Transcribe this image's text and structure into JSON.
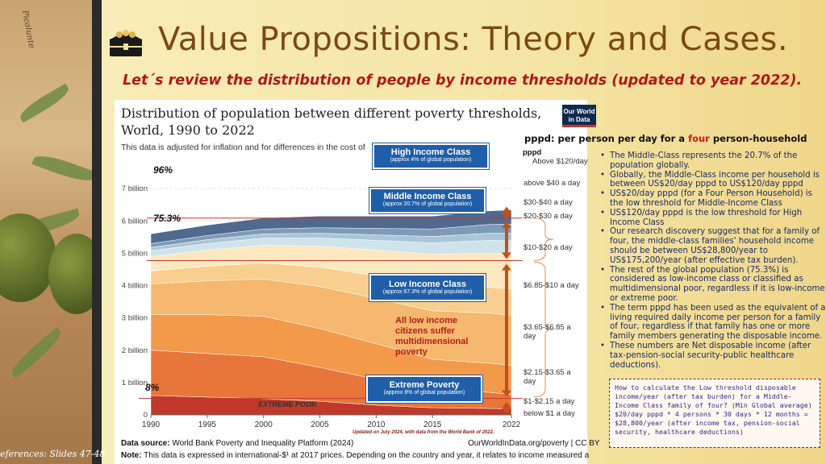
{
  "header": {
    "title": "Value Propositions: Theory and Cases.",
    "subtitle": "Let´s review the distribution of people by income thresholds (updated to year 2022).",
    "icon": "treasure-chest-icon"
  },
  "sidebar": {
    "references": "eferences: Slides 47-48",
    "signature": "Picalunte"
  },
  "owid_logo": {
    "line1": "Our World",
    "line2": "in Data"
  },
  "pppd": {
    "title_prefix": "pppd: per person per day for a ",
    "title_highlight": "four",
    "title_suffix": " person-household",
    "short": "pppd"
  },
  "chart_data": {
    "type": "area",
    "title": "Distribution of population between different poverty thresholds, World, 1990 to 2022",
    "subtitle": "This data is adjusted for inflation and for differences in the cost of",
    "x": [
      1990,
      1995,
      2000,
      2005,
      2010,
      2015,
      2020,
      2022
    ],
    "x_ticks": [
      "1990",
      "1995",
      "2000",
      "2005",
      "2010",
      "2015",
      "2022"
    ],
    "y_ticks": [
      "0",
      "1 billion",
      "2 billion",
      "3 billion",
      "4 billion",
      "5 billion",
      "6 billion",
      "7 billion"
    ],
    "ylim": [
      0,
      8.2
    ],
    "series": [
      {
        "name": "below $1 a day",
        "color": "#c0392b",
        "values": [
          0.6,
          0.55,
          0.5,
          0.42,
          0.3,
          0.22,
          0.2,
          0.18
        ]
      },
      {
        "name": "$1-$2.15 a day",
        "color": "#e8763a",
        "values": [
          1.4,
          1.35,
          1.3,
          1.05,
          0.8,
          0.55,
          0.5,
          0.45
        ]
      },
      {
        "name": "$2.15-$3.65 a day",
        "color": "#f2994a",
        "values": [
          1.1,
          1.2,
          1.25,
          1.2,
          1.1,
          0.95,
          0.9,
          0.9
        ]
      },
      {
        "name": "$3.65-$6.85 a day",
        "color": "#f6b76e",
        "values": [
          0.95,
          1.05,
          1.15,
          1.3,
          1.4,
          1.5,
          1.55,
          1.55
        ]
      },
      {
        "name": "$6.85-$10 a day",
        "color": "#f8cf8e",
        "values": [
          0.4,
          0.45,
          0.5,
          0.6,
          0.7,
          0.8,
          0.8,
          0.82
        ]
      },
      {
        "name": "$10-$20 a day",
        "color": "#fbe8c0",
        "values": [
          0.45,
          0.5,
          0.55,
          0.65,
          0.8,
          0.95,
          1.05,
          1.07
        ]
      },
      {
        "name": "$20-$30 a day",
        "color": "#cfe3ea",
        "values": [
          0.18,
          0.2,
          0.22,
          0.25,
          0.3,
          0.35,
          0.4,
          0.42
        ]
      },
      {
        "name": "$30-$40 a day",
        "color": "#a9c6d8",
        "values": [
          0.1,
          0.12,
          0.13,
          0.15,
          0.17,
          0.2,
          0.22,
          0.23
        ]
      },
      {
        "name": "above $40 a day",
        "color": "#7d9ab8",
        "values": [
          0.12,
          0.13,
          0.15,
          0.17,
          0.2,
          0.23,
          0.27,
          0.28
        ]
      },
      {
        "name": "Above $120/day",
        "color": "#4f6a8e",
        "values": [
          0.3,
          0.32,
          0.34,
          0.36,
          0.38,
          0.4,
          0.42,
          0.44
        ]
      }
    ],
    "annotations": {
      "pct_96": "96%",
      "pct_75": "75.3%",
      "pct_8": "8%",
      "extreme_poor": "EXTREME POOR",
      "low_income_note": "All low income citizens suffer multidimensional poverty",
      "updated": "Updated on July 2024, with data from the World Bank of 2022."
    },
    "threshold_labels": [
      "Above $120/day",
      "above $40 a day",
      "$30-$40 a day",
      "$20-$30 a day",
      "$10-$20 a day",
      "$6.85-$10 a day",
      "$3.65-$6.85 a day",
      "$2.15-$3.65 a day",
      "$1-$2.15 a day",
      "below $1 a day"
    ]
  },
  "class_boxes": [
    {
      "title": "High Income Class",
      "sub": "(approx 4% of global population)"
    },
    {
      "title": "Middle Income Class",
      "sub": "(approx 20.7% of global population)"
    },
    {
      "title": "Low Income Class",
      "sub": "(approx 67.3% of global population)"
    },
    {
      "title": "Extreme Poverty",
      "sub": "(approx 8% of global population)"
    }
  ],
  "bullets": [
    "The Middle-Class represents the 20.7% of the population globally.",
    "Globally, the Middle-Class income per household is between US$20/day pppd to US$120/day pppd",
    "US$20/day pppd (for a Four Person Household) is the low threshold for Middle-Income Class",
    "US$120/day pppd is the low threshold for High Income Class",
    "Our research discovery suggest that for a family of four, the middle-class families' household income should be between US$28,800/year to US$175,200/year (after effective tax burden).",
    "The rest of the global population (75.3%) is considered as  low-income class or classified as multidimensional poor, regardless if it is low-income or extreme poor.",
    "The term pppd has been used as the equivalent of a living required daily income per person for a family of four, regardless if that family has one or more family members generating the disposable income.",
    "These numbers are Net disposable income (after tax-pension-social security-public healthcare deductions)."
  ],
  "calc_box": "How to calculate the Low threshold disposable income/year (after tax burden)  for a Middle-Income Class family of four? (Min Global average) $20/day pppd * 4 persons * 30 days * 12 months = $28,800/year (after income tax, pension-social security, healthcare deductions)",
  "footer": {
    "source_label": "Data source:",
    "source": " World Bank Poverty and Inequality Platform (2024)",
    "right": "OurWorldInData.org/poverty | CC BY",
    "note_label": "Note:",
    "note": " This data is expressed in international-$¹ at 2017 prices. Depending on the country and year, it relates to income measured after"
  }
}
